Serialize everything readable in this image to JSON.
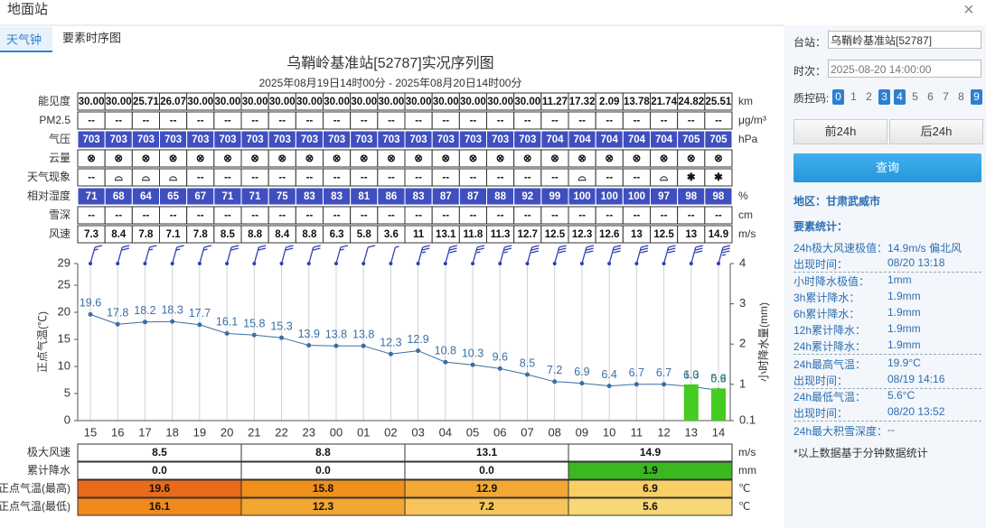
{
  "header": {
    "title": "地面站",
    "close": "×"
  },
  "tabs": [
    "天气钟",
    "要素时序图"
  ],
  "chart_data": {
    "type": "line",
    "title": "乌鞘岭基准站[52787]实况序列图",
    "subtitle": "2025年08月19日14时00分 - 2025年08月20日14时00分",
    "categories": [
      "15",
      "16",
      "17",
      "18",
      "19",
      "20",
      "21",
      "22",
      "23",
      "00",
      "01",
      "02",
      "03",
      "04",
      "05",
      "06",
      "07",
      "08",
      "09",
      "10",
      "11",
      "12",
      "13",
      "14"
    ],
    "series": [
      {
        "color": "#3a6ea5",
        "values": [
          19.6,
          17.8,
          18.2,
          18.3,
          17.7,
          16.1,
          15.8,
          15.3,
          13.9,
          13.8,
          13.8,
          12.3,
          12.9,
          10.8,
          10.3,
          9.6,
          8.5,
          7.2,
          6.9,
          6.4,
          6.7,
          6.7,
          6.3,
          5.6
        ]
      },
      {
        "type": "bar",
        "axis": "y2",
        "color": "#44cc22",
        "values": [
          null,
          null,
          null,
          null,
          null,
          null,
          null,
          null,
          null,
          null,
          null,
          null,
          null,
          null,
          null,
          null,
          null,
          null,
          null,
          null,
          null,
          null,
          1.0,
          0.9
        ],
        "value_labels": [
          null,
          null,
          null,
          null,
          null,
          null,
          null,
          null,
          null,
          null,
          null,
          null,
          null,
          null,
          null,
          null,
          null,
          null,
          null,
          null,
          null,
          null,
          "1.0",
          "0.9"
        ]
      }
    ],
    "ylabel": "正点气温(℃)",
    "y2label": "小时降水量(mm)",
    "ylim": [
      0,
      29
    ],
    "yticks": [
      0,
      5,
      10,
      15,
      20,
      25,
      29
    ],
    "y2lim": [
      0.1,
      4
    ],
    "y2ticks": [
      0.1,
      1,
      2,
      3,
      4
    ],
    "xgrid": true
  },
  "obs_table": {
    "rows": [
      {
        "label": "能见度",
        "unit": "km",
        "values": [
          "30.00",
          "30.00",
          "25.71",
          "26.07",
          "30.00",
          "30.00",
          "30.00",
          "30.00",
          "30.00",
          "30.00",
          "30.00",
          "30.00",
          "30.00",
          "30.00",
          "30.00",
          "30.00",
          "30.00",
          "11.27",
          "17.32",
          "2.09",
          "13.78",
          "21.74",
          "24.82",
          "25.51"
        ]
      },
      {
        "label": "PM2.5",
        "unit": "μg/m³",
        "values": [
          "--",
          "--",
          "--",
          "--",
          "--",
          "--",
          "--",
          "--",
          "--",
          "--",
          "--",
          "--",
          "--",
          "--",
          "--",
          "--",
          "--",
          "--",
          "--",
          "--",
          "--",
          "--",
          "--",
          "--"
        ]
      },
      {
        "label": "气压",
        "unit": "hPa",
        "fill": "#3f4fbf",
        "values": [
          "703",
          "703",
          "703",
          "703",
          "703",
          "703",
          "703",
          "703",
          "703",
          "703",
          "703",
          "703",
          "703",
          "703",
          "703",
          "703",
          "703",
          "704",
          "704",
          "704",
          "704",
          "704",
          "705",
          "705"
        ]
      },
      {
        "label": "云量",
        "values": [
          "⊗",
          "⊗",
          "⊗",
          "⊗",
          "⊗",
          "⊗",
          "⊗",
          "⊗",
          "⊗",
          "⊗",
          "⊗",
          "⊗",
          "⊗",
          "⊗",
          "⊗",
          "⊗",
          "⊗",
          "⊗",
          "⊗",
          "⊗",
          "⊗",
          "⊗",
          "⊗",
          "⊗"
        ]
      },
      {
        "label": "天气现象",
        "values": [
          "--",
          "⌓",
          "⌓",
          "⌓",
          "--",
          "--",
          "--",
          "--",
          "--",
          "--",
          "--",
          "--",
          "--",
          "--",
          "--",
          "--",
          "--",
          "--",
          "⌓",
          "--",
          "--",
          "⌓",
          "✱",
          "✱"
        ]
      },
      {
        "label": "相对湿度",
        "unit": "%",
        "fill": "#3f4fbf",
        "values": [
          "71",
          "68",
          "64",
          "65",
          "67",
          "71",
          "71",
          "75",
          "83",
          "83",
          "81",
          "86",
          "83",
          "87",
          "87",
          "88",
          "92",
          "99",
          "100",
          "100",
          "100",
          "97",
          "98",
          "98"
        ]
      },
      {
        "label": "雪深",
        "unit": "cm",
        "values": [
          "--",
          "--",
          "--",
          "--",
          "--",
          "--",
          "--",
          "--",
          "--",
          "--",
          "--",
          "--",
          "--",
          "--",
          "--",
          "--",
          "--",
          "--",
          "--",
          "--",
          "--",
          "--",
          "--",
          "--"
        ]
      },
      {
        "label": "风速",
        "unit": "m/s",
        "values": [
          "7.3",
          "8.4",
          "7.8",
          "7.1",
          "7.8",
          "8.5",
          "8.8",
          "8.4",
          "8.8",
          "6.3",
          "5.8",
          "3.6",
          "11",
          "13.1",
          "11.8",
          "11.3",
          "12.7",
          "12.5",
          "12.3",
          "12.6",
          "13",
          "12.5",
          "13",
          "14.9"
        ]
      }
    ]
  },
  "summary": {
    "rows": [
      {
        "label": "极大风速",
        "unit": "m/s",
        "values": [
          "8.5",
          "8.8",
          "13.1",
          "14.9"
        ],
        "colors": [
          "#ffffff",
          "#ffffff",
          "#ffffff",
          "#ffffff"
        ]
      },
      {
        "label": "累计降水",
        "unit": "mm",
        "values": [
          "0.0",
          "0.0",
          "0.0",
          "1.9"
        ],
        "colors": [
          "#ffffff",
          "#ffffff",
          "#ffffff",
          "#3cb81f"
        ]
      },
      {
        "label": "正点气温(最高)",
        "unit": "℃",
        "values": [
          "19.6",
          "15.8",
          "12.9",
          "6.9"
        ],
        "colors": [
          "#ea6a1a",
          "#f0901a",
          "#f3a834",
          "#f7cf64"
        ]
      },
      {
        "label": "正点气温(最低)",
        "unit": "℃",
        "values": [
          "16.1",
          "12.3",
          "7.2",
          "5.6"
        ],
        "colors": [
          "#f08a1c",
          "#f3a630",
          "#f6c458",
          "#f8d876"
        ]
      }
    ]
  },
  "panel": {
    "station_label": "台站：",
    "station": "乌鞘岭基准站[52787]",
    "time_label": "时次：",
    "time": "2025-08-20 14:00:00",
    "qc_label": "质控码:",
    "qc_codes": [
      {
        "code": "0",
        "on": true
      },
      {
        "code": "1",
        "on": false
      },
      {
        "code": "2",
        "on": false
      },
      {
        "code": "3",
        "on": true
      },
      {
        "code": "4",
        "on": true
      },
      {
        "code": "5",
        "on": false
      },
      {
        "code": "6",
        "on": false
      },
      {
        "code": "7",
        "on": false
      },
      {
        "code": "8",
        "on": false
      },
      {
        "code": "9",
        "on": true
      }
    ],
    "prev": "前24h",
    "next": "后24h",
    "query": "查询",
    "region": "地区：甘肃武威市",
    "stats_title": "要素统计：",
    "stats": [
      [
        "24h极大风速极值：",
        "14.9m/s 偏北风"
      ],
      [
        "出现时间：",
        "08/20 13:18"
      ],
      [
        "小时降水极值：",
        "1mm"
      ],
      [
        "3h累计降水：",
        "1.9mm"
      ],
      [
        "6h累计降水：",
        "1.9mm"
      ],
      [
        "12h累计降水：",
        "1.9mm"
      ],
      [
        "24h累计降水：",
        "1.9mm"
      ],
      [
        "24h最高气温：",
        "19.9°C"
      ],
      [
        "出现时间：",
        "08/19 14:16"
      ],
      [
        "24h最低气温：",
        "5.6°C"
      ],
      [
        "出现时间：",
        "08/20 13:52"
      ],
      [
        "24h最大积雪深度：",
        "--"
      ]
    ],
    "note": "*以上数据基于分钟数据统计"
  }
}
